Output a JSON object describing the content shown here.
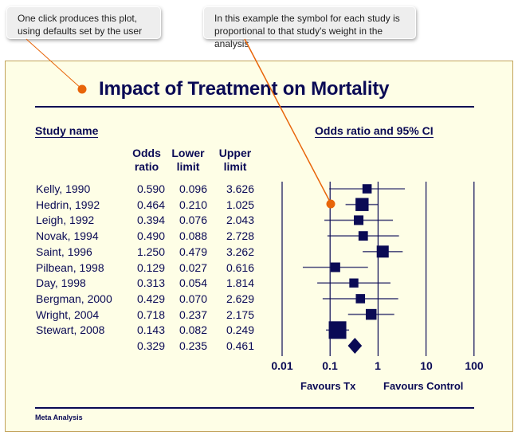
{
  "callouts": [
    {
      "text_line1": "One click produces this plot,",
      "text_line2": "using defaults set by the user"
    },
    {
      "text_line1": "In this example the symbol for each study is",
      "text_line2": "proportional to that study's weight in the analysis"
    }
  ],
  "colors": {
    "ink": "#0a0a55",
    "panel_bg": "#fefee6",
    "panel_border": "#c2a25a",
    "callout_accent": "#e8650a"
  },
  "footer": "Meta Analysis",
  "chart_data": {
    "type": "forest",
    "title": "Impact of Treatment on Mortality",
    "left_header": "Study name",
    "right_header": "Odds ratio and 95% CI",
    "columns": [
      {
        "line1": "Odds",
        "line2": "ratio"
      },
      {
        "line1": "Lower",
        "line2": "limit"
      },
      {
        "line1": "Upper",
        "line2": "limit"
      }
    ],
    "x_scale": "log",
    "xlim": [
      0.01,
      100
    ],
    "x_ticks": [
      "0.01",
      "0.1",
      "1",
      "10",
      "100"
    ],
    "x_tick_values": [
      0.01,
      0.1,
      1,
      10,
      100
    ],
    "favours_left": "Favours Tx",
    "favours_right": "Favours Control",
    "studies": [
      {
        "name": "Kelly, 1990",
        "or": "0.590",
        "lower": "0.096",
        "upper": "3.626",
        "weight": 0.15
      },
      {
        "name": "Hedrin, 1992",
        "or": "0.464",
        "lower": "0.210",
        "upper": "1.025",
        "weight": 0.45
      },
      {
        "name": "Leigh, 1992",
        "or": "0.394",
        "lower": "0.076",
        "upper": "2.043",
        "weight": 0.17
      },
      {
        "name": "Novak, 1994",
        "or": "0.490",
        "lower": "0.088",
        "upper": "2.728",
        "weight": 0.16
      },
      {
        "name": "Saint, 1996",
        "or": "1.250",
        "lower": "0.479",
        "upper": "3.262",
        "weight": 0.35
      },
      {
        "name": "Pilbean, 1998",
        "or": "0.129",
        "lower": "0.027",
        "upper": "0.616",
        "weight": 0.17
      },
      {
        "name": "Day, 1998",
        "or": "0.313",
        "lower": "0.054",
        "upper": "1.814",
        "weight": 0.14
      },
      {
        "name": "Bergman, 2000",
        "or": "0.429",
        "lower": "0.070",
        "upper": "2.629",
        "weight": 0.15
      },
      {
        "name": "Wright, 2004",
        "or": "0.718",
        "lower": "0.237",
        "upper": "2.175",
        "weight": 0.25
      },
      {
        "name": "Stewart, 2008",
        "or": "0.143",
        "lower": "0.082",
        "upper": "0.249",
        "weight": 1.0
      }
    ],
    "summary": {
      "name": "",
      "or": "0.329",
      "lower": "0.235",
      "upper": "0.461"
    }
  }
}
